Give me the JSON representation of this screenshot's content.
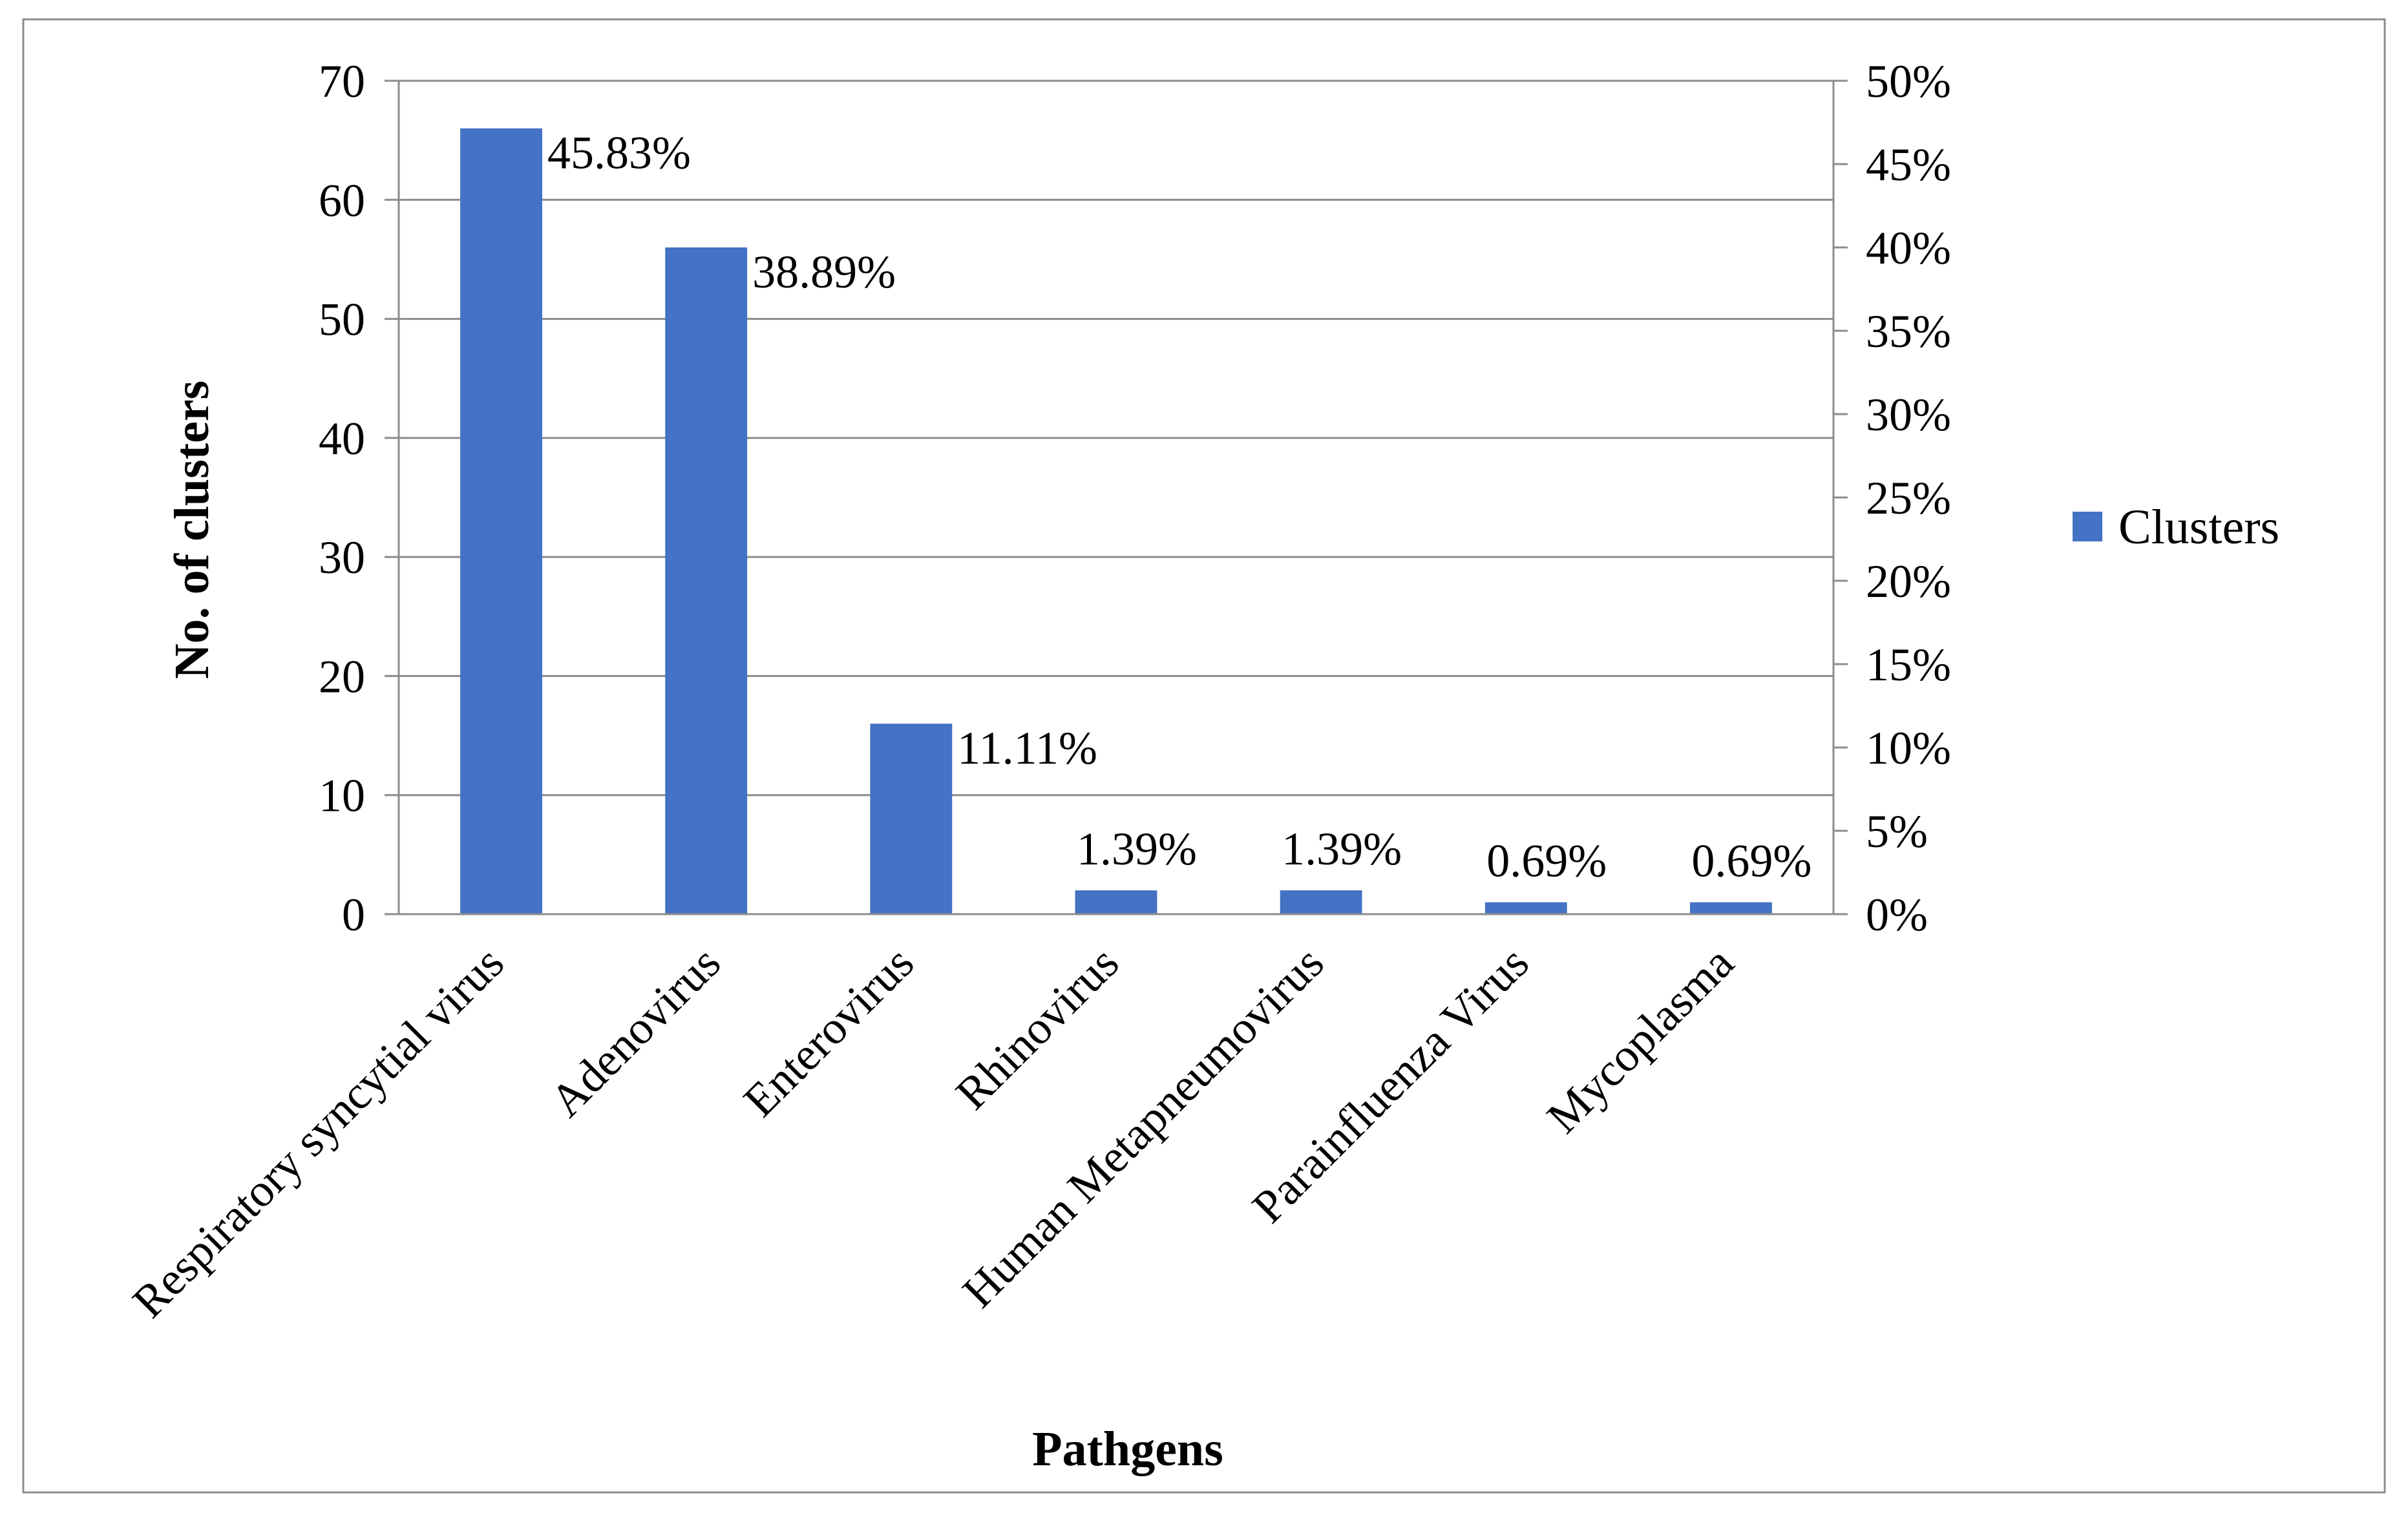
{
  "chart_data": {
    "type": "bar",
    "title": "",
    "xlabel": "Pathgens",
    "ylabel": "No. of clusters",
    "categories": [
      "Respiratory syncytial virus",
      "Adenovirus",
      "Enterovirus",
      "Rhinovirus",
      "Human Metapneumovirus",
      "Parainfluenza Virus",
      "Mycoplasma"
    ],
    "series": [
      {
        "name": "Clusters",
        "color": "#4472C4",
        "values": [
          66,
          56,
          16,
          2,
          2,
          1,
          1
        ],
        "data_labels": [
          "45.83%",
          "38.89%",
          "11.11%",
          "1.39%",
          "1.39%",
          "0.69%",
          "0.69%"
        ]
      }
    ],
    "ylim": [
      0,
      70
    ],
    "y_ticks": [
      0,
      10,
      20,
      30,
      40,
      50,
      60,
      70
    ],
    "y2lim": [
      0,
      50
    ],
    "y2_ticks": [
      "0%",
      "5%",
      "10%",
      "15%",
      "20%",
      "25%",
      "30%",
      "35%",
      "40%",
      "45%",
      "50%"
    ],
    "grid": true,
    "legend": {
      "position": "right",
      "entries": [
        "Clusters"
      ]
    }
  }
}
